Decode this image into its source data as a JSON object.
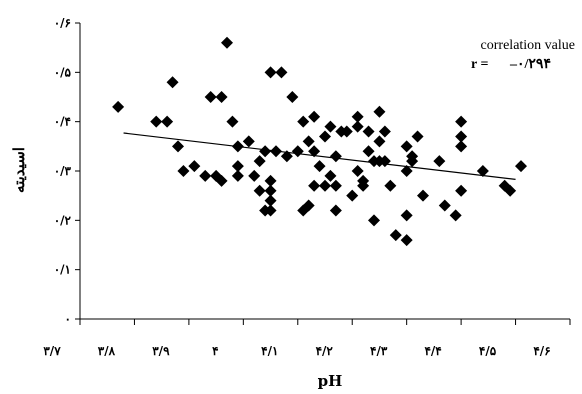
{
  "chart_data": {
    "type": "scatter",
    "title": "",
    "xlabel": "pH",
    "ylabel": "اسیدیته",
    "xlim": [
      3.7,
      4.6
    ],
    "ylim": [
      0,
      0.6
    ],
    "x_ticks": [
      3.7,
      3.8,
      3.9,
      4.0,
      4.1,
      4.2,
      4.3,
      4.4,
      4.5,
      4.6
    ],
    "x_tick_labels": [
      "۳/۷",
      "۳/۸",
      "۳/۹",
      "۴",
      "۴/۱",
      "۴/۲",
      "۴/۳",
      "۴/۴",
      "۴/۵",
      "۴/۶"
    ],
    "y_ticks": [
      0,
      0.1,
      0.2,
      0.3,
      0.4,
      0.5,
      0.6
    ],
    "y_tick_labels": [
      "۰",
      "۰/۱",
      "۰/۲",
      "۰/۳",
      "۰/۴",
      "۰/۵",
      "۰/۶"
    ],
    "grid": false,
    "marker": "diamond",
    "marker_color": "#000000",
    "annotation": {
      "line1": "correlation value",
      "r_label": "r =",
      "r_value": "–۰/۲۹۴"
    },
    "trendline": {
      "x": [
        3.78,
        4.5
      ],
      "y": [
        0.377,
        0.283
      ]
    },
    "series": [
      {
        "points": [
          {
            "x": 3.77,
            "y": 0.43
          },
          {
            "x": 3.84,
            "y": 0.4
          },
          {
            "x": 3.86,
            "y": 0.4
          },
          {
            "x": 3.87,
            "y": 0.48
          },
          {
            "x": 3.88,
            "y": 0.35
          },
          {
            "x": 3.89,
            "y": 0.3
          },
          {
            "x": 3.91,
            "y": 0.31
          },
          {
            "x": 3.93,
            "y": 0.29
          },
          {
            "x": 3.94,
            "y": 0.45
          },
          {
            "x": 3.95,
            "y": 0.29
          },
          {
            "x": 3.96,
            "y": 0.28
          },
          {
            "x": 3.96,
            "y": 0.45
          },
          {
            "x": 3.97,
            "y": 0.56
          },
          {
            "x": 3.98,
            "y": 0.4
          },
          {
            "x": 3.99,
            "y": 0.29
          },
          {
            "x": 3.99,
            "y": 0.31
          },
          {
            "x": 3.99,
            "y": 0.35
          },
          {
            "x": 4.01,
            "y": 0.36
          },
          {
            "x": 4.02,
            "y": 0.29
          },
          {
            "x": 4.03,
            "y": 0.26
          },
          {
            "x": 4.03,
            "y": 0.32
          },
          {
            "x": 4.04,
            "y": 0.34
          },
          {
            "x": 4.04,
            "y": 0.22
          },
          {
            "x": 4.05,
            "y": 0.24
          },
          {
            "x": 4.05,
            "y": 0.5
          },
          {
            "x": 4.05,
            "y": 0.28
          },
          {
            "x": 4.05,
            "y": 0.26
          },
          {
            "x": 4.05,
            "y": 0.22
          },
          {
            "x": 4.06,
            "y": 0.34
          },
          {
            "x": 4.07,
            "y": 0.5
          },
          {
            "x": 4.08,
            "y": 0.33
          },
          {
            "x": 4.09,
            "y": 0.45
          },
          {
            "x": 4.1,
            "y": 0.34
          },
          {
            "x": 4.11,
            "y": 0.22
          },
          {
            "x": 4.11,
            "y": 0.4
          },
          {
            "x": 4.12,
            "y": 0.23
          },
          {
            "x": 4.12,
            "y": 0.36
          },
          {
            "x": 4.13,
            "y": 0.41
          },
          {
            "x": 4.13,
            "y": 0.34
          },
          {
            "x": 4.13,
            "y": 0.27
          },
          {
            "x": 4.14,
            "y": 0.31
          },
          {
            "x": 4.15,
            "y": 0.37
          },
          {
            "x": 4.15,
            "y": 0.27
          },
          {
            "x": 4.16,
            "y": 0.29
          },
          {
            "x": 4.16,
            "y": 0.39
          },
          {
            "x": 4.17,
            "y": 0.27
          },
          {
            "x": 4.17,
            "y": 0.33
          },
          {
            "x": 4.17,
            "y": 0.22
          },
          {
            "x": 4.18,
            "y": 0.38
          },
          {
            "x": 4.19,
            "y": 0.38
          },
          {
            "x": 4.2,
            "y": 0.25
          },
          {
            "x": 4.21,
            "y": 0.41
          },
          {
            "x": 4.21,
            "y": 0.3
          },
          {
            "x": 4.21,
            "y": 0.39
          },
          {
            "x": 4.22,
            "y": 0.28
          },
          {
            "x": 4.22,
            "y": 0.27
          },
          {
            "x": 4.23,
            "y": 0.34
          },
          {
            "x": 4.23,
            "y": 0.38
          },
          {
            "x": 4.24,
            "y": 0.32
          },
          {
            "x": 4.24,
            "y": 0.2
          },
          {
            "x": 4.25,
            "y": 0.36
          },
          {
            "x": 4.25,
            "y": 0.42
          },
          {
            "x": 4.25,
            "y": 0.32
          },
          {
            "x": 4.26,
            "y": 0.32
          },
          {
            "x": 4.26,
            "y": 0.38
          },
          {
            "x": 4.27,
            "y": 0.27
          },
          {
            "x": 4.28,
            "y": 0.17
          },
          {
            "x": 4.3,
            "y": 0.16
          },
          {
            "x": 4.3,
            "y": 0.21
          },
          {
            "x": 4.3,
            "y": 0.3
          },
          {
            "x": 4.3,
            "y": 0.35
          },
          {
            "x": 4.31,
            "y": 0.32
          },
          {
            "x": 4.31,
            "y": 0.33
          },
          {
            "x": 4.32,
            "y": 0.37
          },
          {
            "x": 4.33,
            "y": 0.25
          },
          {
            "x": 4.36,
            "y": 0.32
          },
          {
            "x": 4.37,
            "y": 0.23
          },
          {
            "x": 4.39,
            "y": 0.21
          },
          {
            "x": 4.4,
            "y": 0.26
          },
          {
            "x": 4.4,
            "y": 0.35
          },
          {
            "x": 4.4,
            "y": 0.37
          },
          {
            "x": 4.4,
            "y": 0.4
          },
          {
            "x": 4.44,
            "y": 0.3
          },
          {
            "x": 4.48,
            "y": 0.27
          },
          {
            "x": 4.49,
            "y": 0.26
          },
          {
            "x": 4.51,
            "y": 0.31
          }
        ]
      }
    ]
  }
}
